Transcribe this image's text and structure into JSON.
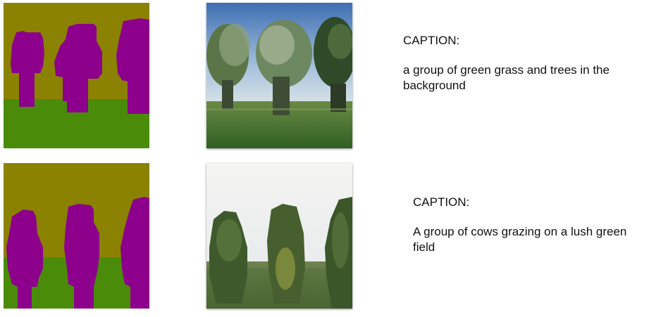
{
  "colors": {
    "sky_label": "#8a8200",
    "tree_label": "#8c008c",
    "grass_label": "#4a8c0a"
  },
  "rows": [
    {
      "segmentation_icon": "segmentation-map",
      "photo_icon": "generated-photo",
      "caption_heading": "CAPTION:",
      "caption_text": "a group of green grass and trees in the background"
    },
    {
      "segmentation_icon": "segmentation-map",
      "photo_icon": "generated-photo",
      "caption_heading": "CAPTION:",
      "caption_text": "A group of cows grazing on a lush green field"
    }
  ]
}
